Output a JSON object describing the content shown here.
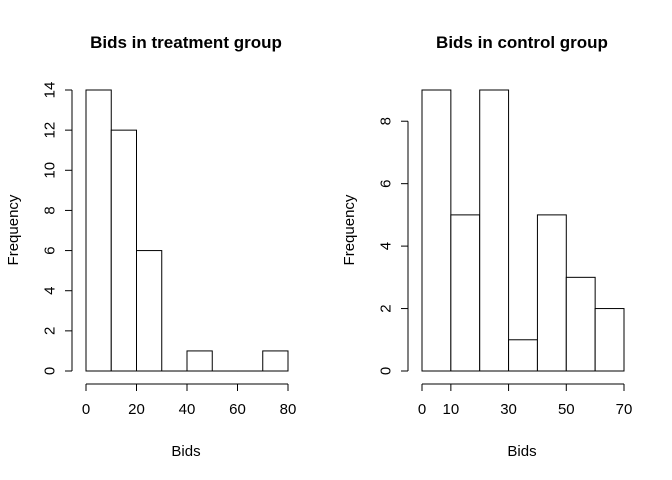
{
  "chart_data": [
    {
      "type": "bar",
      "title": "Bids in treatment group",
      "xlabel": "Bids",
      "ylabel": "Frequency",
      "bin_edges": [
        0,
        10,
        20,
        30,
        40,
        50,
        60,
        70,
        80
      ],
      "values": [
        14,
        12,
        6,
        0,
        1,
        0,
        0,
        1
      ],
      "xlim": [
        0,
        80
      ],
      "ylim": [
        0,
        14
      ],
      "x_ticks": [
        0,
        20,
        40,
        60,
        80
      ],
      "y_ticks": [
        0,
        2,
        4,
        6,
        8,
        10,
        12,
        14
      ],
      "grid": false
    },
    {
      "type": "bar",
      "title": "Bids in control group",
      "xlabel": "Bids",
      "ylabel": "Frequency",
      "bin_edges": [
        0,
        10,
        20,
        30,
        40,
        50,
        60,
        70
      ],
      "values": [
        9,
        5,
        9,
        1,
        5,
        3,
        2
      ],
      "xlim": [
        0,
        70
      ],
      "ylim": [
        0,
        9
      ],
      "x_ticks": [
        0,
        10,
        30,
        50,
        70
      ],
      "y_ticks": [
        0,
        2,
        4,
        6,
        8
      ],
      "grid": false
    }
  ]
}
